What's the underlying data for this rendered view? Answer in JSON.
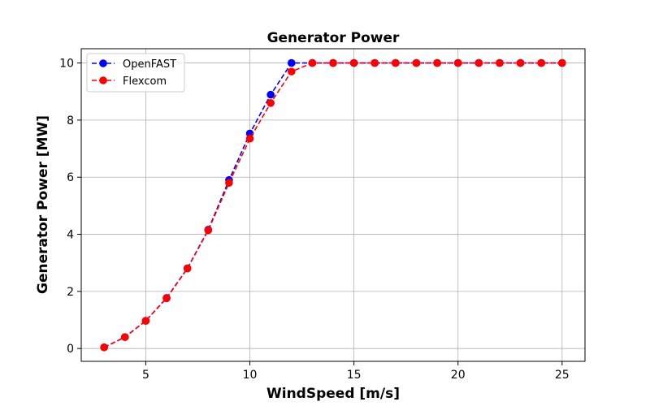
{
  "chart_data": {
    "type": "line",
    "title": "Generator Power",
    "xlabel": "WindSpeed [m/s]",
    "ylabel": "Generator Power [MW]",
    "xlim": [
      1.9,
      26.1
    ],
    "ylim": [
      -0.45,
      10.5
    ],
    "xticks": [
      5,
      10,
      15,
      20,
      25
    ],
    "yticks": [
      0,
      2,
      4,
      6,
      8,
      10
    ],
    "grid": true,
    "legend_position": "top-left",
    "x": [
      3,
      4,
      5,
      6,
      7,
      8,
      9,
      10,
      11,
      12,
      13,
      14,
      15,
      16,
      17,
      18,
      19,
      20,
      21,
      22,
      23,
      24,
      25
    ],
    "series": [
      {
        "name": "OpenFAST",
        "color": "#0000ff",
        "values": [
          0.04,
          0.4,
          0.97,
          1.77,
          2.81,
          4.16,
          5.9,
          7.53,
          8.89,
          10.0,
          10.0,
          10.0,
          10.0,
          10.0,
          10.0,
          10.0,
          10.0,
          10.0,
          10.0,
          10.0,
          10.0,
          10.0,
          10.0
        ]
      },
      {
        "name": "Flexcom",
        "color": "#ff0000",
        "values": [
          0.04,
          0.4,
          0.97,
          1.76,
          2.8,
          4.14,
          5.8,
          7.35,
          8.6,
          9.7,
          10.0,
          10.0,
          10.0,
          10.0,
          10.0,
          10.0,
          10.0,
          10.0,
          10.0,
          10.0,
          10.0,
          10.0,
          10.0
        ]
      }
    ]
  }
}
